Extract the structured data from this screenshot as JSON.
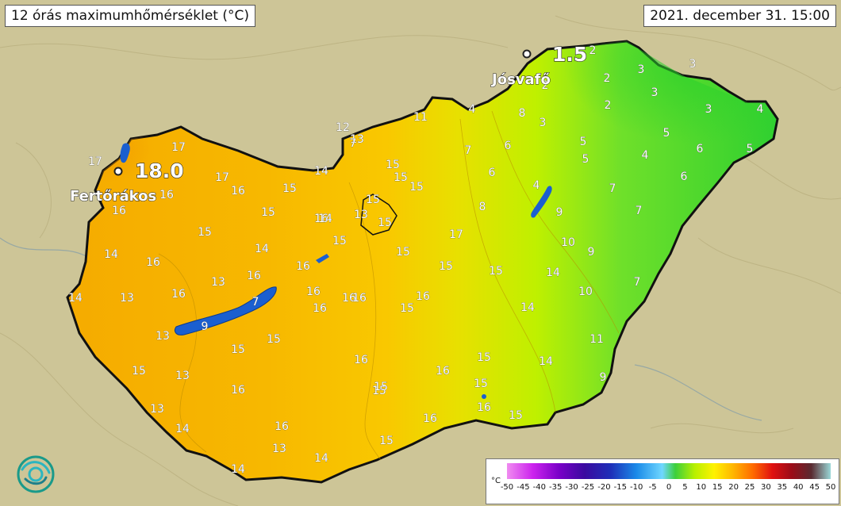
{
  "title": "12 órás maximumhőmérséklet (°C)",
  "timestamp": "2021. december 31. 15:00",
  "logo_icon": "met-service-logo-icon",
  "extremes": [
    {
      "place": "Fertőrákos",
      "value": "18.0"
    },
    {
      "place": "Jósvafő",
      "value": "1.5"
    }
  ],
  "station_values": [
    "17",
    "17",
    "16",
    "16",
    "17",
    "14",
    "15",
    "16",
    "16",
    "15",
    "15",
    "14",
    "16",
    "15",
    "14",
    "13",
    "16",
    "16",
    "14",
    "13",
    "16",
    "13",
    "7",
    "16",
    "16",
    "9",
    "13",
    "15",
    "15",
    "16",
    "15",
    "16",
    "13",
    "16",
    "15",
    "14",
    "13",
    "14",
    "16",
    "14",
    "15",
    "13",
    "14",
    "12",
    "7",
    "11",
    "15",
    "15",
    "13",
    "15",
    "15",
    "15",
    "17",
    "15",
    "15",
    "16",
    "16",
    "16",
    "15",
    "16",
    "15",
    "16",
    "15",
    "4",
    "8",
    "3",
    "6",
    "7",
    "6",
    "4",
    "8",
    "2",
    "2",
    "2",
    "2",
    "3",
    "3",
    "3",
    "3",
    "4",
    "5",
    "5",
    "5",
    "4",
    "5",
    "6",
    "6",
    "7",
    "7",
    "9",
    "10",
    "9",
    "15",
    "14",
    "10",
    "7",
    "14",
    "11",
    "14",
    "9",
    "15",
    "15"
  ],
  "legend": {
    "unit": "°C",
    "ticks": [
      "-50",
      "-45",
      "-40",
      "-35",
      "-30",
      "-25",
      "-20",
      "-15",
      "-10",
      "-5",
      "0",
      "5",
      "10",
      "15",
      "20",
      "25",
      "30",
      "35",
      "40",
      "45",
      "50"
    ],
    "colors": {
      "cold": "#3ccf3c",
      "mild": "#fff200",
      "warm": "#ffb400",
      "water": "#1a5fd0"
    }
  }
}
